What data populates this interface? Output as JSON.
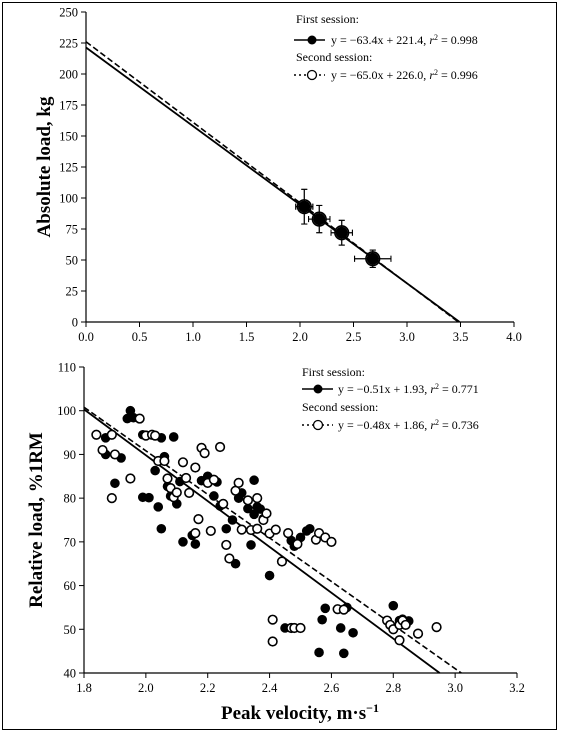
{
  "chart_data": [
    {
      "type": "scatter",
      "x_ticks": [
        "0.0",
        "0.5",
        "1.0",
        "1.5",
        "2.0",
        "2.5",
        "3.0",
        "3.5",
        "4.0"
      ],
      "y_ticks": [
        "0",
        "25",
        "50",
        "75",
        "100",
        "125",
        "150",
        "175",
        "200",
        "225",
        "250"
      ],
      "xlim": [
        0,
        4.0
      ],
      "ylim": [
        0,
        250
      ],
      "ylabel": "Absolute load, kg",
      "grid": false,
      "legend_placement": "top-right",
      "legend": [
        {
          "title": "First session:",
          "equation": "y = −63.4x + 221.4, ",
          "r2_label": "r",
          "r2_value": " = 0.998",
          "marker": "filled",
          "line": "solid"
        },
        {
          "title": "Second session:",
          "equation": "y = −65.0x + 226.0, ",
          "r2_label": "r",
          "r2_value": " = 0.996",
          "marker": "open",
          "line": "dashed"
        }
      ],
      "series": [
        {
          "name": "First session",
          "points": [
            {
              "x": 2.04,
              "y": 93,
              "xerr": 0.08,
              "yerr": 14
            },
            {
              "x": 2.18,
              "y": 83,
              "xerr": 0.1,
              "yerr": 11
            },
            {
              "x": 2.39,
              "y": 72,
              "xerr": 0.1,
              "yerr": 10
            },
            {
              "x": 2.68,
              "y": 51,
              "xerr": 0.17,
              "yerr": 7
            }
          ]
        },
        {
          "name": "Second session",
          "points": [
            {
              "x": 2.04,
              "y": 93,
              "xerr": 0.08,
              "yerr": 14
            },
            {
              "x": 2.18,
              "y": 83,
              "xerr": 0.1,
              "yerr": 11
            },
            {
              "x": 2.39,
              "y": 72,
              "xerr": 0.1,
              "yerr": 10
            },
            {
              "x": 2.68,
              "y": 51,
              "xerr": 0.17,
              "yerr": 7
            }
          ]
        }
      ],
      "fits": [
        {
          "slope": -63.4,
          "intercept": 221.4,
          "style": "solid",
          "x_range": [
            0,
            3.49
          ]
        },
        {
          "slope": -65.0,
          "intercept": 226.0,
          "style": "dashed",
          "x_range": [
            0,
            3.48
          ]
        }
      ]
    },
    {
      "type": "scatter",
      "x_ticks": [
        "1.8",
        "2.0",
        "2.2",
        "2.4",
        "2.6",
        "2.8",
        "3.0",
        "3.2"
      ],
      "y_ticks": [
        "40",
        "50",
        "60",
        "70",
        "80",
        "90",
        "100",
        "110"
      ],
      "xlim": [
        1.8,
        3.2
      ],
      "ylim": [
        40,
        110
      ],
      "xlabel": "Peak velocity, m·s",
      "xlabel_exponent": "−1",
      "ylabel": "Relative load, %1RM",
      "grid": false,
      "legend_placement": "top-right",
      "legend": [
        {
          "title": "First session:",
          "equation": "y = −0.51x + 1.93, ",
          "r2_label": "r",
          "r2_value": " = 0.771",
          "marker": "filled",
          "line": "solid"
        },
        {
          "title": "Second session:",
          "equation": "y = −0.48x + 1.86, ",
          "r2_label": "r",
          "r2_value": " = 0.736",
          "marker": "open",
          "line": "dashed"
        }
      ],
      "series": [
        {
          "name": "First session",
          "points": [
            [
              1.87,
              93.8
            ],
            [
              1.87,
              90
            ],
            [
              1.9,
              83.4
            ],
            [
              1.92,
              89.2
            ],
            [
              1.94,
              98.2
            ],
            [
              1.95,
              100
            ],
            [
              1.96,
              98.4
            ],
            [
              1.99,
              94.5
            ],
            [
              2.0,
              94.4
            ],
            [
              1.99,
              80.2
            ],
            [
              2.01,
              80.1
            ],
            [
              2.03,
              86.3
            ],
            [
              2.04,
              78
            ],
            [
              2.05,
              73
            ],
            [
              2.05,
              93.8
            ],
            [
              2.06,
              89.5
            ],
            [
              2.07,
              82.7
            ],
            [
              2.08,
              80.5
            ],
            [
              2.09,
              94
            ],
            [
              2.1,
              78.7
            ],
            [
              2.11,
              83.8
            ],
            [
              2.12,
              70
            ],
            [
              2.15,
              71.5
            ],
            [
              2.16,
              69.5
            ],
            [
              2.18,
              84
            ],
            [
              2.2,
              85
            ],
            [
              2.22,
              80.5
            ],
            [
              2.23,
              83.7
            ],
            [
              2.24,
              78.2
            ],
            [
              2.26,
              73
            ],
            [
              2.28,
              75
            ],
            [
              2.29,
              65
            ],
            [
              2.3,
              80
            ],
            [
              2.31,
              81.2
            ],
            [
              2.33,
              77.6
            ],
            [
              2.34,
              69.3
            ],
            [
              2.35,
              84.1
            ],
            [
              2.35,
              76.3
            ],
            [
              2.36,
              78
            ],
            [
              2.37,
              77.5
            ],
            [
              2.38,
              75.3
            ],
            [
              2.4,
              62.3
            ],
            [
              2.45,
              50.3
            ],
            [
              2.47,
              70.3
            ],
            [
              2.48,
              69
            ],
            [
              2.5,
              71
            ],
            [
              2.52,
              72.5
            ],
            [
              2.53,
              73
            ],
            [
              2.56,
              44.7
            ],
            [
              2.57,
              52.2
            ],
            [
              2.58,
              54.8
            ],
            [
              2.63,
              50.3
            ],
            [
              2.64,
              44.5
            ],
            [
              2.65,
              55
            ],
            [
              2.67,
              49.2
            ],
            [
              2.8,
              55.4
            ],
            [
              2.82,
              52
            ],
            [
              2.83,
              52.3
            ],
            [
              2.85,
              51.9
            ]
          ]
        },
        {
          "name": "Second session",
          "points": [
            [
              1.84,
              94.5
            ],
            [
              1.86,
              91
            ],
            [
              1.89,
              94.5
            ],
            [
              1.89,
              80
            ],
            [
              1.9,
              90
            ],
            [
              1.95,
              84.5
            ],
            [
              1.98,
              98.2
            ],
            [
              2.0,
              94.3
            ],
            [
              2.02,
              94.5
            ],
            [
              2.03,
              94.3
            ],
            [
              2.04,
              88.5
            ],
            [
              2.06,
              88.5
            ],
            [
              2.07,
              84.5
            ],
            [
              2.08,
              82.3
            ],
            [
              2.09,
              80.2
            ],
            [
              2.1,
              81.3
            ],
            [
              2.12,
              88.2
            ],
            [
              2.13,
              84.6
            ],
            [
              2.14,
              81.2
            ],
            [
              2.16,
              87
            ],
            [
              2.16,
              72
            ],
            [
              2.17,
              75.2
            ],
            [
              2.18,
              91.5
            ],
            [
              2.19,
              90.3
            ],
            [
              2.2,
              83.5
            ],
            [
              2.21,
              72.5
            ],
            [
              2.22,
              84.2
            ],
            [
              2.24,
              91.7
            ],
            [
              2.25,
              78.7
            ],
            [
              2.26,
              69.3
            ],
            [
              2.27,
              66.2
            ],
            [
              2.29,
              81.7
            ],
            [
              2.3,
              83.5
            ],
            [
              2.31,
              72.8
            ],
            [
              2.33,
              79.5
            ],
            [
              2.34,
              72.7
            ],
            [
              2.36,
              80
            ],
            [
              2.36,
              73
            ],
            [
              2.38,
              75
            ],
            [
              2.39,
              76.5
            ],
            [
              2.4,
              71.9
            ],
            [
              2.41,
              52.2
            ],
            [
              2.41,
              47.2
            ],
            [
              2.42,
              72.8
            ],
            [
              2.44,
              65.5
            ],
            [
              2.46,
              72
            ],
            [
              2.47,
              50.3
            ],
            [
              2.48,
              50.3
            ],
            [
              2.49,
              69.5
            ],
            [
              2.5,
              50.3
            ],
            [
              2.55,
              70.5
            ],
            [
              2.56,
              72
            ],
            [
              2.58,
              71
            ],
            [
              2.6,
              70
            ],
            [
              2.62,
              54.6
            ],
            [
              2.64,
              54.5
            ],
            [
              2.78,
              52
            ],
            [
              2.79,
              51
            ],
            [
              2.8,
              50
            ],
            [
              2.82,
              47.5
            ],
            [
              2.82,
              51
            ],
            [
              2.83,
              52
            ],
            [
              2.84,
              51
            ],
            [
              2.88,
              49
            ],
            [
              2.94,
              50.5
            ]
          ]
        }
      ],
      "fits": [
        {
          "style": "solid",
          "x_range": [
            1.8,
            2.95
          ],
          "y_range": [
            100.3,
            40
          ]
        },
        {
          "style": "dashed",
          "x_range": [
            1.8,
            3.02
          ],
          "y_range": [
            100.8,
            40
          ]
        }
      ]
    }
  ]
}
